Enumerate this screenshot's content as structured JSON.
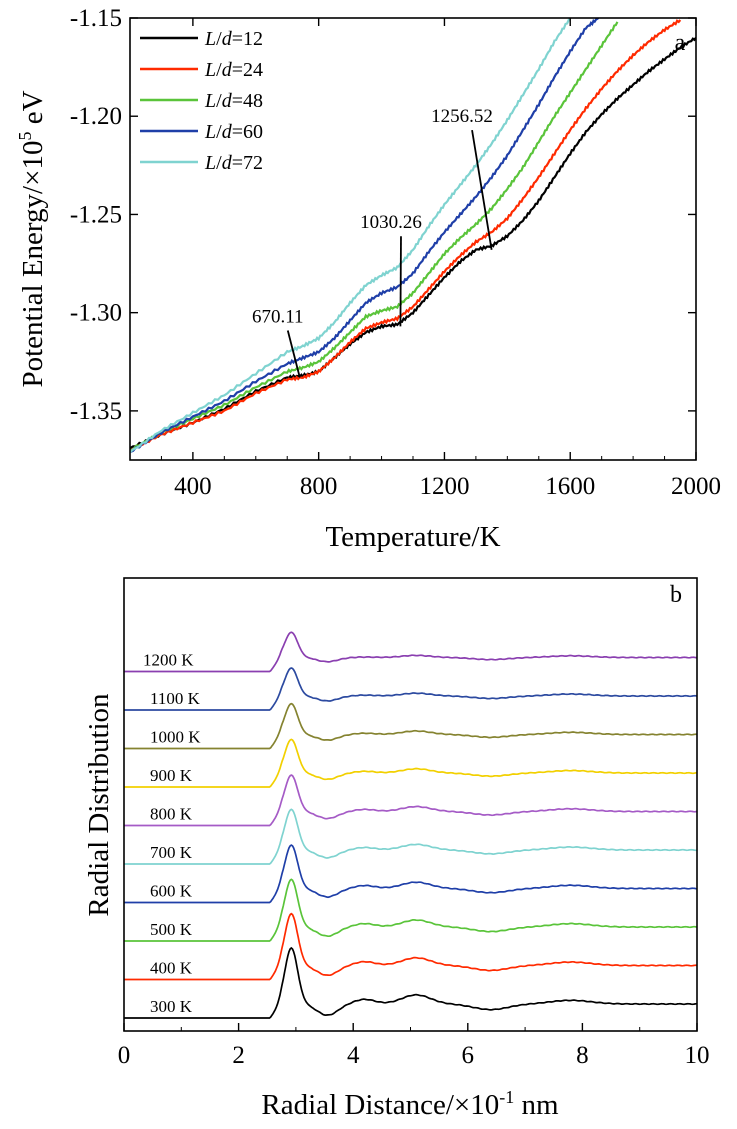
{
  "chart_data": [
    {
      "type": "line",
      "panel_label": "a",
      "xlabel": "Temperature/K",
      "ylabel": {
        "prefix": "Potential Energy/×10",
        "sup": "5",
        "suffix": " eV"
      },
      "xlim": [
        200,
        2000
      ],
      "ylim": [
        -1.375,
        -1.15
      ],
      "xticks": [
        400,
        800,
        1200,
        1600,
        2000
      ],
      "yticks": [
        -1.15,
        -1.2,
        -1.25,
        -1.3,
        -1.35
      ],
      "ytick_labels": [
        "-1.15",
        "-1.20",
        "-1.25",
        "-1.30",
        "-1.35"
      ],
      "legend_position": "top-left",
      "series": [
        {
          "name": "L/d=12",
          "color": "#000000",
          "x": [
            200,
            300,
            400,
            500,
            600,
            700,
            750,
            800,
            850,
            900,
            950,
            1000,
            1050,
            1100,
            1150,
            1200,
            1250,
            1300,
            1350,
            1400,
            1450,
            1500,
            1550,
            1600,
            1650,
            1700,
            1750,
            1800,
            1850,
            1900,
            1950,
            2000
          ],
          "y": [
            -1.369,
            -1.362,
            -1.356,
            -1.349,
            -1.34,
            -1.333,
            -1.332,
            -1.33,
            -1.323,
            -1.316,
            -1.31,
            -1.307,
            -1.306,
            -1.3,
            -1.291,
            -1.282,
            -1.274,
            -1.268,
            -1.266,
            -1.261,
            -1.253,
            -1.243,
            -1.231,
            -1.219,
            -1.208,
            -1.199,
            -1.191,
            -1.184,
            -1.177,
            -1.171,
            -1.165,
            -1.16
          ]
        },
        {
          "name": "L/d=24",
          "color": "#ff2a00",
          "x": [
            200,
            300,
            400,
            500,
            600,
            700,
            750,
            800,
            850,
            900,
            950,
            1000,
            1050,
            1100,
            1150,
            1200,
            1250,
            1300,
            1350,
            1400,
            1450,
            1500,
            1550,
            1600,
            1650,
            1700,
            1750,
            1800,
            1850,
            1900,
            1950
          ],
          "y": [
            -1.37,
            -1.362,
            -1.356,
            -1.35,
            -1.341,
            -1.334,
            -1.333,
            -1.33,
            -1.323,
            -1.315,
            -1.308,
            -1.305,
            -1.303,
            -1.297,
            -1.288,
            -1.279,
            -1.271,
            -1.264,
            -1.259,
            -1.252,
            -1.242,
            -1.231,
            -1.219,
            -1.207,
            -1.196,
            -1.186,
            -1.177,
            -1.169,
            -1.162,
            -1.156,
            -1.151
          ]
        },
        {
          "name": "L/d=48",
          "color": "#5ac43a",
          "x": [
            200,
            300,
            400,
            500,
            600,
            700,
            750,
            800,
            850,
            900,
            950,
            1000,
            1050,
            1100,
            1150,
            1200,
            1250,
            1300,
            1350,
            1400,
            1450,
            1500,
            1550,
            1600,
            1650,
            1700,
            1750
          ],
          "y": [
            -1.37,
            -1.361,
            -1.354,
            -1.347,
            -1.338,
            -1.33,
            -1.328,
            -1.325,
            -1.318,
            -1.31,
            -1.302,
            -1.299,
            -1.297,
            -1.29,
            -1.28,
            -1.27,
            -1.262,
            -1.255,
            -1.247,
            -1.237,
            -1.226,
            -1.213,
            -1.2,
            -1.188,
            -1.176,
            -1.164,
            -1.152
          ]
        },
        {
          "name": "L/d=60",
          "color": "#1f3fa8",
          "x": [
            200,
            300,
            400,
            500,
            600,
            700,
            750,
            800,
            850,
            900,
            950,
            1000,
            1050,
            1100,
            1150,
            1200,
            1250,
            1300,
            1350,
            1400,
            1450,
            1500,
            1550,
            1600,
            1650,
            1690
          ],
          "y": [
            -1.371,
            -1.361,
            -1.353,
            -1.345,
            -1.335,
            -1.326,
            -1.323,
            -1.32,
            -1.313,
            -1.304,
            -1.295,
            -1.29,
            -1.287,
            -1.28,
            -1.269,
            -1.259,
            -1.25,
            -1.241,
            -1.231,
            -1.22,
            -1.207,
            -1.194,
            -1.18,
            -1.167,
            -1.155,
            -1.15
          ]
        },
        {
          "name": "L/d=72",
          "color": "#7fd3d0",
          "x": [
            200,
            300,
            400,
            500,
            600,
            700,
            750,
            800,
            850,
            900,
            950,
            1000,
            1050,
            1100,
            1150,
            1200,
            1250,
            1300,
            1350,
            1400,
            1450,
            1500,
            1550,
            1600
          ],
          "y": [
            -1.371,
            -1.36,
            -1.351,
            -1.342,
            -1.331,
            -1.32,
            -1.317,
            -1.313,
            -1.305,
            -1.295,
            -1.286,
            -1.281,
            -1.277,
            -1.268,
            -1.256,
            -1.245,
            -1.235,
            -1.225,
            -1.214,
            -1.202,
            -1.189,
            -1.176,
            -1.162,
            -1.15
          ]
        }
      ],
      "annotations": [
        {
          "text": "670.11",
          "text_x": 670,
          "text_y": -1.305,
          "point_x": 740,
          "point_y": -1.333
        },
        {
          "text": "1030.26",
          "text_x": 1030,
          "text_y": -1.257,
          "point_x": 1060,
          "point_y": -1.307
        },
        {
          "text": "1256.52",
          "text_x": 1256,
          "text_y": -1.203,
          "point_x": 1350,
          "point_y": -1.268
        }
      ]
    },
    {
      "type": "line",
      "panel_label": "b",
      "xlabel": {
        "prefix": "Radial Distance/×10",
        "sup": "-1",
        "suffix": " nm"
      },
      "ylabel": "Radial Distribution",
      "xlim": [
        0,
        10
      ],
      "xticks": [
        0,
        2,
        4,
        6,
        8,
        10
      ],
      "curve_offset": 1,
      "series": [
        {
          "name": "300 K",
          "color": "#000000",
          "peak1": 5.0,
          "min1": 0.2,
          "peak2": 1.35,
          "peak3": 0.75
        },
        {
          "name": "400 K",
          "color": "#ff2a00",
          "peak1": 4.7,
          "min1": 0.3,
          "peak2": 1.25,
          "peak3": 0.7
        },
        {
          "name": "500 K",
          "color": "#5ac43a",
          "peak1": 4.4,
          "min1": 0.35,
          "peak2": 1.2,
          "peak3": 0.68
        },
        {
          "name": "600 K",
          "color": "#1f3fa8",
          "peak1": 4.1,
          "min1": 0.4,
          "peak2": 1.15,
          "peak3": 0.65
        },
        {
          "name": "700 K",
          "color": "#7fd3d0",
          "peak1": 3.9,
          "min1": 0.45,
          "peak2": 1.1,
          "peak3": 0.6
        },
        {
          "name": "800 K",
          "color": "#a55bc6",
          "peak1": 3.6,
          "min1": 0.5,
          "peak2": 1.05,
          "peak3": 0.55
        },
        {
          "name": "900 K",
          "color": "#f2d000",
          "peak1": 3.4,
          "min1": 0.55,
          "peak2": 1.0,
          "peak3": 0.5
        },
        {
          "name": "1000 K",
          "color": "#858330",
          "peak1": 3.2,
          "min1": 0.6,
          "peak2": 0.95,
          "peak3": 0.45
        },
        {
          "name": "1100 K",
          "color": "#2c4aa0",
          "peak1": 3.0,
          "min1": 0.65,
          "peak2": 0.9,
          "peak3": 0.4
        },
        {
          "name": "1200 K",
          "color": "#8a3fb0",
          "peak1": 2.8,
          "min1": 0.7,
          "peak2": 0.85,
          "peak3": 0.35
        }
      ]
    }
  ]
}
